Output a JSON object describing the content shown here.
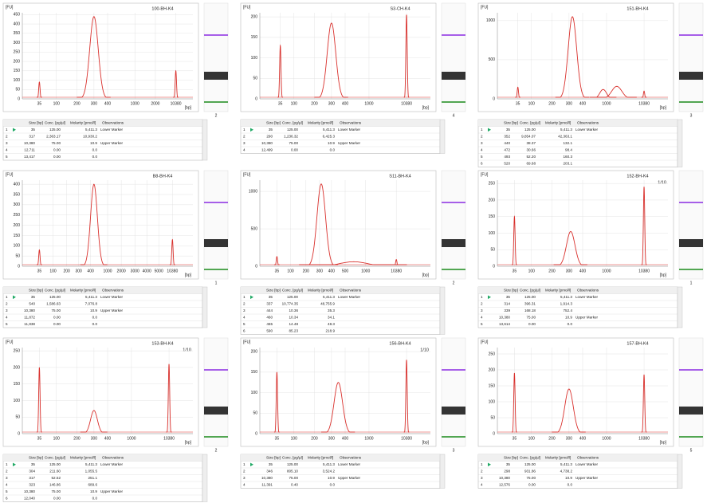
{
  "axis_labels": {
    "y": "[FU]",
    "x": "[bp]"
  },
  "table_headers": [
    "Size [bp]",
    "Conc. [pg/µl]",
    "Molarity [pmol/l]",
    "Observations"
  ],
  "panels": [
    {
      "title": "100-BH-K4",
      "lane": "2",
      "ylim": [
        0,
        460
      ],
      "yticks": [
        0,
        50,
        100,
        150,
        200,
        250,
        300,
        350,
        400,
        450
      ],
      "xlim": [
        0,
        100
      ],
      "xticks": [
        {
          "value": 10,
          "label": "35"
        },
        {
          "value": 20,
          "label": "100"
        },
        {
          "value": 32,
          "label": "200"
        },
        {
          "value": 42,
          "label": "300"
        },
        {
          "value": 50,
          "label": "400"
        },
        {
          "value": 66,
          "label": "1000"
        },
        {
          "value": 78,
          "label": "2000"
        },
        {
          "value": 90,
          "label": "10380"
        }
      ],
      "peaks": [
        {
          "x": 10,
          "h": 90,
          "w": 0.4
        },
        {
          "x": 42,
          "h": 440,
          "w": 2.5
        },
        {
          "x": 90,
          "h": 150,
          "w": 0.4
        }
      ],
      "rows": [
        [
          "1",
          "35",
          "125.00",
          "5,411.3",
          "Lower Marker"
        ],
        [
          "2",
          "317",
          "2,363.17",
          "10,930.2"
        ],
        [
          "3",
          "10,380",
          "75.00",
          "10.9",
          "Upper Marker"
        ],
        [
          "4",
          "12,711",
          "0.00",
          "0.0"
        ],
        [
          "5",
          "13,417",
          "0.00",
          "0.0"
        ]
      ]
    },
    {
      "title": "S3-CH-K4",
      "lane": "4",
      "ylim": [
        0,
        210
      ],
      "yticks": [
        0,
        50,
        100,
        150,
        200
      ],
      "xlim": [
        0,
        100
      ],
      "xticks": [
        {
          "value": 12,
          "label": "35"
        },
        {
          "value": 20,
          "label": "100"
        },
        {
          "value": 32,
          "label": "200"
        },
        {
          "value": 42,
          "label": "300"
        },
        {
          "value": 50,
          "label": "400"
        },
        {
          "value": 64,
          "label": "1000"
        },
        {
          "value": 86,
          "label": "10380"
        }
      ],
      "peaks": [
        {
          "x": 12,
          "h": 130,
          "w": 0.4
        },
        {
          "x": 42,
          "h": 185,
          "w": 2.5
        },
        {
          "x": 86,
          "h": 205,
          "w": 0.4
        }
      ],
      "rows": [
        [
          "1",
          "35",
          "125.00",
          "5,411.3",
          "Lower Marker"
        ],
        [
          "2",
          "290",
          "1,236.32",
          "6,425.3"
        ],
        [
          "3",
          "10,380",
          "75.00",
          "10.9",
          "Upper Marker"
        ],
        [
          "4",
          "12,499",
          "0.00",
          "0.0"
        ]
      ]
    },
    {
      "title": "151-BH-K4",
      "lane": "3",
      "ylim": [
        0,
        1100
      ],
      "yticks": [
        0,
        500,
        1000
      ],
      "xlim": [
        0,
        100
      ],
      "xticks": [
        {
          "value": 12,
          "label": "35"
        },
        {
          "value": 20,
          "label": "100"
        },
        {
          "value": 32,
          "label": "200"
        },
        {
          "value": 42,
          "label": "300"
        },
        {
          "value": 50,
          "label": "400"
        },
        {
          "value": 64,
          "label": "1000"
        },
        {
          "value": 86,
          "label": "10380"
        }
      ],
      "peaks": [
        {
          "x": 12,
          "h": 150,
          "w": 0.4
        },
        {
          "x": 44,
          "h": 1050,
          "w": 2.5
        },
        {
          "x": 62,
          "h": 120,
          "w": 2
        },
        {
          "x": 70,
          "h": 160,
          "w": 3
        },
        {
          "x": 86,
          "h": 100,
          "w": 0.4
        }
      ],
      "rows": [
        [
          "1",
          "35",
          "125.00",
          "5,411.3",
          "Lower Marker"
        ],
        [
          "2",
          "352",
          "9,854.07",
          "42,363.1"
        ],
        [
          "3",
          "440",
          "38.37",
          "132.1"
        ],
        [
          "4",
          "472",
          "30.66",
          "98.4"
        ],
        [
          "5",
          "493",
          "52.20",
          "160.3"
        ],
        [
          "6",
          "520",
          "69.68",
          "203.1"
        ]
      ]
    },
    {
      "title": "B8-BH-K4",
      "lane": "1",
      "ylim": [
        0,
        420
      ],
      "yticks": [
        0,
        50,
        100,
        150,
        200,
        250,
        300,
        350,
        400
      ],
      "xlim": [
        0,
        100
      ],
      "xticks": [
        {
          "value": 10,
          "label": "35"
        },
        {
          "value": 18,
          "label": "100"
        },
        {
          "value": 26,
          "label": "200"
        },
        {
          "value": 33,
          "label": "300"
        },
        {
          "value": 40,
          "label": "400"
        },
        {
          "value": 50,
          "label": "1000"
        },
        {
          "value": 58,
          "label": "2000"
        },
        {
          "value": 66,
          "label": "3000"
        },
        {
          "value": 73,
          "label": "4000"
        },
        {
          "value": 80,
          "label": "5000"
        },
        {
          "value": 88,
          "label": "10380"
        }
      ],
      "peaks": [
        {
          "x": 10,
          "h": 80,
          "w": 0.4
        },
        {
          "x": 42,
          "h": 400,
          "w": 2
        },
        {
          "x": 88,
          "h": 130,
          "w": 0.4
        }
      ],
      "rows": [
        [
          "1",
          "35",
          "125.00",
          "5,411.3",
          "Lower Marker"
        ],
        [
          "2",
          "540",
          "1,586.63",
          "7,076.8"
        ],
        [
          "3",
          "10,380",
          "75.00",
          "10.9",
          "Upper Marker"
        ],
        [
          "4",
          "11,872",
          "0.00",
          "0.0"
        ],
        [
          "5",
          "11,838",
          "0.00",
          "0.0"
        ]
      ]
    },
    {
      "title": "S11-BH-K4",
      "lane": "2",
      "ylim": [
        0,
        1150
      ],
      "yticks": [
        0,
        500,
        1000
      ],
      "xlim": [
        0,
        100
      ],
      "xticks": [
        {
          "value": 10,
          "label": "35"
        },
        {
          "value": 18,
          "label": "100"
        },
        {
          "value": 27,
          "label": "200"
        },
        {
          "value": 35,
          "label": "300"
        },
        {
          "value": 42,
          "label": "400"
        },
        {
          "value": 50,
          "label": "500"
        },
        {
          "value": 62,
          "label": "1000"
        },
        {
          "value": 80,
          "label": "10380"
        }
      ],
      "peaks": [
        {
          "x": 10,
          "h": 130,
          "w": 0.4
        },
        {
          "x": 36,
          "h": 1100,
          "w": 2.5
        },
        {
          "x": 55,
          "h": 60,
          "w": 8
        },
        {
          "x": 80,
          "h": 90,
          "w": 0.4
        }
      ],
      "rows": [
        [
          "1",
          "35",
          "125.00",
          "5,411.3",
          "Lower Marker"
        ],
        [
          "2",
          "337",
          "10,774.35",
          "48,755.9"
        ],
        [
          "3",
          "444",
          "10.36",
          "35.3"
        ],
        [
          "4",
          "460",
          "10.34",
          "34.1"
        ],
        [
          "5",
          "465",
          "14.48",
          "48.3"
        ],
        [
          "6",
          "590",
          "85.23",
          "218.9"
        ]
      ]
    },
    {
      "title": "152-BH-K4",
      "dilution": "1/10",
      "lane": "1",
      "ylim": [
        0,
        260
      ],
      "yticks": [
        0,
        50,
        100,
        150,
        200,
        250
      ],
      "xlim": [
        0,
        100
      ],
      "xticks": [
        {
          "value": 10,
          "label": "35"
        },
        {
          "value": 20,
          "label": "100"
        },
        {
          "value": 32,
          "label": "200"
        },
        {
          "value": 42,
          "label": "300"
        },
        {
          "value": 50,
          "label": "400"
        },
        {
          "value": 64,
          "label": "1000"
        },
        {
          "value": 86,
          "label": "10380"
        }
      ],
      "peaks": [
        {
          "x": 10,
          "h": 150,
          "w": 0.4
        },
        {
          "x": 43,
          "h": 105,
          "w": 2.5
        },
        {
          "x": 86,
          "h": 240,
          "w": 0.4
        }
      ],
      "rows": [
        [
          "1",
          "35",
          "125.00",
          "5,411.3",
          "Lower Marker"
        ],
        [
          "2",
          "314",
          "396.31",
          "1,914.3"
        ],
        [
          "3",
          "339",
          "168.18",
          "752.4"
        ],
        [
          "4",
          "10,380",
          "75.00",
          "10.9",
          "Upper Marker"
        ],
        [
          "5",
          "13,614",
          "0.00",
          "0.0"
        ]
      ]
    },
    {
      "title": "153-BH-K4",
      "dilution": "1/10",
      "lane": "2",
      "ylim": [
        0,
        260
      ],
      "yticks": [
        0,
        50,
        100,
        150,
        200,
        250
      ],
      "xlim": [
        0,
        100
      ],
      "xticks": [
        {
          "value": 10,
          "label": "35"
        },
        {
          "value": 20,
          "label": "100"
        },
        {
          "value": 32,
          "label": "200"
        },
        {
          "value": 42,
          "label": "300"
        },
        {
          "value": 50,
          "label": "400"
        },
        {
          "value": 64,
          "label": "1000"
        },
        {
          "value": 86,
          "label": "10380"
        }
      ],
      "peaks": [
        {
          "x": 10,
          "h": 200,
          "w": 0.4
        },
        {
          "x": 42,
          "h": 70,
          "w": 2
        },
        {
          "x": 86,
          "h": 210,
          "w": 0.4
        }
      ],
      "rows": [
        [
          "1",
          "35",
          "125.00",
          "5,411.3",
          "Lower Marker"
        ],
        [
          "2",
          "304",
          "211.60",
          "1,055.5"
        ],
        [
          "3",
          "317",
          "52.52",
          "251.1"
        ],
        [
          "4",
          "323",
          "146.86",
          "689.6"
        ],
        [
          "5",
          "10,380",
          "75.00",
          "10.9",
          "Upper Marker"
        ],
        [
          "6",
          "12,040",
          "0.00",
          "0.0"
        ]
      ]
    },
    {
      "title": "156-BH-K4",
      "dilution": "1/10",
      "lane": "3",
      "ylim": [
        0,
        210
      ],
      "yticks": [
        0,
        50,
        100,
        150,
        200
      ],
      "xlim": [
        0,
        100
      ],
      "xticks": [
        {
          "value": 10,
          "label": "35"
        },
        {
          "value": 20,
          "label": "100"
        },
        {
          "value": 32,
          "label": "200"
        },
        {
          "value": 42,
          "label": "300"
        },
        {
          "value": 50,
          "label": "400"
        },
        {
          "value": 64,
          "label": "1000"
        },
        {
          "value": 86,
          "label": "10380"
        }
      ],
      "peaks": [
        {
          "x": 10,
          "h": 150,
          "w": 0.4
        },
        {
          "x": 46,
          "h": 125,
          "w": 2.5
        },
        {
          "x": 86,
          "h": 180,
          "w": 0.4
        }
      ],
      "rows": [
        [
          "1",
          "35",
          "125.00",
          "5,411.3",
          "Lower Marker"
        ],
        [
          "2",
          "346",
          "805.10",
          "3,524.2"
        ],
        [
          "3",
          "10,380",
          "75.00",
          "10.9",
          "Upper Marker"
        ],
        [
          "4",
          "11,391",
          "0.40",
          "0.0"
        ]
      ]
    },
    {
      "title": "157-BH-K4",
      "lane": "5",
      "ylim": [
        0,
        270
      ],
      "yticks": [
        0,
        50,
        100,
        150,
        200,
        250
      ],
      "xlim": [
        0,
        100
      ],
      "xticks": [
        {
          "value": 10,
          "label": "35"
        },
        {
          "value": 20,
          "label": "100"
        },
        {
          "value": 32,
          "label": "200"
        },
        {
          "value": 42,
          "label": "300"
        },
        {
          "value": 50,
          "label": "400"
        },
        {
          "value": 64,
          "label": "1000"
        },
        {
          "value": 86,
          "label": "10380"
        }
      ],
      "peaks": [
        {
          "x": 10,
          "h": 190,
          "w": 0.4
        },
        {
          "x": 42,
          "h": 140,
          "w": 2.5
        },
        {
          "x": 86,
          "h": 185,
          "w": 0.4
        }
      ],
      "rows": [
        [
          "1",
          "35",
          "125.00",
          "5,411.3",
          "Lower Marker"
        ],
        [
          "2",
          "298",
          "931.86",
          "4,738.2"
        ],
        [
          "3",
          "10,380",
          "75.00",
          "10.9",
          "Upper Marker"
        ],
        [
          "4",
          "12,576",
          "0.00",
          "0.0"
        ]
      ]
    }
  ]
}
